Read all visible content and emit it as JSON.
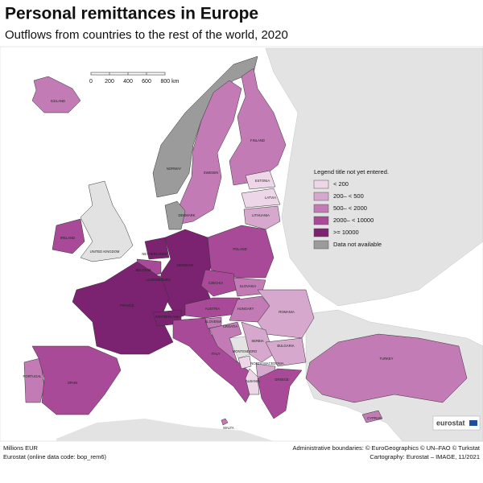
{
  "header": {
    "title": "Personal remittances in Europe",
    "subtitle": "Outflows from countries to the rest of the world, 2020"
  },
  "scale_bar": [
    "0",
    "200",
    "400",
    "600",
    "800 km"
  ],
  "legend": {
    "title": "Legend title not yet entered.",
    "items": [
      {
        "label": "< 200",
        "color": "#ecd6e8"
      },
      {
        "label": "200– < 500",
        "color": "#d7a8cd"
      },
      {
        "label": "500– < 2000",
        "color": "#c27bb5"
      },
      {
        "label": "2000– < 10000",
        "color": "#a84a98"
      },
      {
        "label": ">= 10000",
        "color": "#7b2270"
      },
      {
        "label": "Data not available",
        "color": "#9b9b9b"
      }
    ]
  },
  "countries": [
    {
      "label": "ICELAND",
      "color": "#c27bb5"
    },
    {
      "label": "NORWAY",
      "color": "#9b9b9b"
    },
    {
      "label": "SWEDEN",
      "color": "#c27bb5"
    },
    {
      "label": "FINLAND",
      "color": "#c27bb5"
    },
    {
      "label": "ESTONIA",
      "color": "#ecd6e8"
    },
    {
      "label": "LATVIA",
      "color": "#ecd6e8"
    },
    {
      "label": "LITHUANIA",
      "color": "#d7a8cd"
    },
    {
      "label": "DENMARK",
      "color": "#9b9b9b"
    },
    {
      "label": "IRELAND",
      "color": "#a84a98"
    },
    {
      "label": "UNITED KINGDOM",
      "color": "#e2e2e2"
    },
    {
      "label": "NETHERLANDS",
      "color": "#7b2270"
    },
    {
      "label": "BELGIUM",
      "color": "#a84a98"
    },
    {
      "label": "LUXEMBOURG",
      "color": "#a84a98"
    },
    {
      "label": "GERMANY",
      "color": "#7b2270"
    },
    {
      "label": "POLAND",
      "color": "#a84a98"
    },
    {
      "label": "CZECHIA",
      "color": "#a84a98"
    },
    {
      "label": "SLOVAKIA",
      "color": "#c27bb5"
    },
    {
      "label": "AUSTRIA",
      "color": "#a84a98"
    },
    {
      "label": "HUNGARY",
      "color": "#c27bb5"
    },
    {
      "label": "ROMANIA",
      "color": "#d7a8cd"
    },
    {
      "label": "FRANCE",
      "color": "#7b2270"
    },
    {
      "label": "SWITZERLAND",
      "color": "#7b2270"
    },
    {
      "label": "ITALY",
      "color": "#a84a98"
    },
    {
      "label": "SLOVENIA",
      "color": "#c27bb5"
    },
    {
      "label": "CROATIA",
      "color": "#c27bb5"
    },
    {
      "label": "SERBIA",
      "color": "#d7a8cd"
    },
    {
      "label": "MONTENEGRO",
      "color": "#ecd6e8"
    },
    {
      "label": "BULGARIA",
      "color": "#d7a8cd"
    },
    {
      "label": "NORTH MACEDONIA",
      "color": "#d7a8cd"
    },
    {
      "label": "ALBANIA",
      "color": "#ecd6e8"
    },
    {
      "label": "GREECE",
      "color": "#a84a98"
    },
    {
      "label": "TURKEY",
      "color": "#c27bb5"
    },
    {
      "label": "PORTUGAL",
      "color": "#c27bb5"
    },
    {
      "label": "SPAIN",
      "color": "#a84a98"
    },
    {
      "label": "MALTA",
      "color": "#c27bb5"
    },
    {
      "label": "CYPRUS",
      "color": "#c27bb5"
    }
  ],
  "logo": "eurostat",
  "footer": {
    "left": [
      "Millions EUR",
      "Eurostat (online data code: bop_rem6)"
    ],
    "right": [
      "Administrative boundaries: © EuroGeographics © UN–FAO © Turkstat",
      "Cartography: Eurostat – IMAGE, 11/2021"
    ]
  }
}
